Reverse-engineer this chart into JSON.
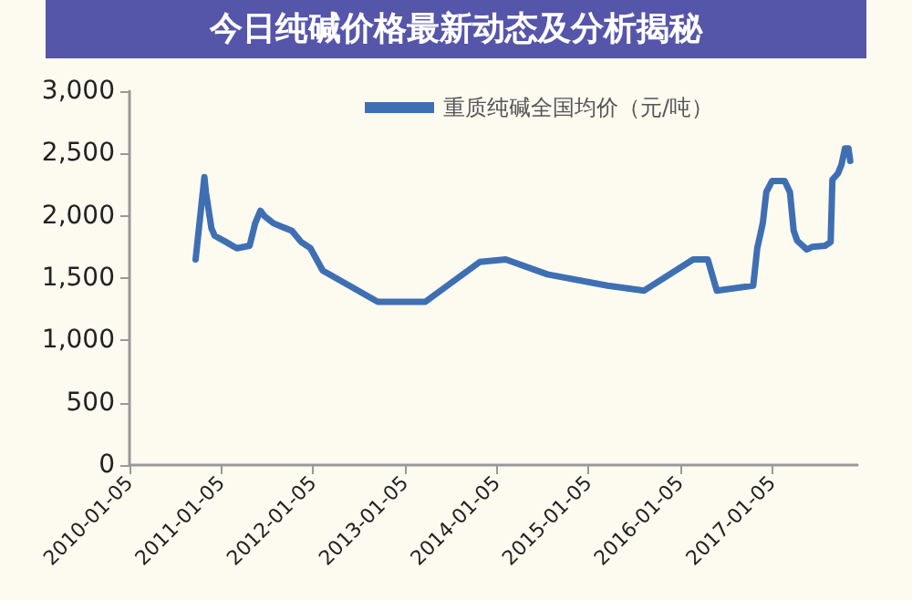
{
  "chart_data": {
    "type": "line",
    "title": "今日纯碱价格最新动态及分析揭秘",
    "x": [
      "2010-09-25",
      "2010-10-30",
      "2010-11-05",
      "2010-11-27",
      "2010-12-10",
      "2011-01-24",
      "2011-03-08",
      "2011-04-28",
      "2011-05-20",
      "2011-06-10",
      "2011-06-25",
      "2011-08-01",
      "2011-09-06",
      "2011-10-13",
      "2011-11-19",
      "2011-12-26",
      "2012-02-13",
      "2012-09-19",
      "2013-03-27",
      "2013-10-30",
      "2014-02-10",
      "2014-07-26",
      "2015-03-22",
      "2015-08-15",
      "2016-02-26",
      "2016-04-24",
      "2016-05-30",
      "2016-10-22",
      "2016-11-07",
      "2016-11-29",
      "2016-12-13",
      "2017-01-05",
      "2017-02-24",
      "2017-03-17",
      "2017-04-01",
      "2017-04-15",
      "2017-05-23",
      "2017-06-13",
      "2017-08-05",
      "2017-08-26",
      "2017-09-02",
      "2017-09-24",
      "2017-10-08",
      "2017-10-22",
      "2017-11-05",
      "2017-11-12"
    ],
    "series": [
      {
        "name": "重质纯碱全国均价（元/吨）",
        "color": "#3f6fb3",
        "values": [
          1650,
          2310,
          2190,
          1900,
          1840,
          1790,
          1740,
          1760,
          1940,
          2040,
          2000,
          1940,
          1910,
          1880,
          1790,
          1740,
          1560,
          1310,
          1310,
          1630,
          1650,
          1530,
          1440,
          1400,
          1650,
          1650,
          1400,
          1440,
          1740,
          1940,
          2190,
          2280,
          2280,
          2190,
          1880,
          1800,
          1730,
          1750,
          1760,
          1790,
          2290,
          2340,
          2410,
          2540,
          2540,
          2440
        ]
      }
    ],
    "xlim": [
      "2010-01-05",
      "2017-12-10"
    ],
    "xticks": [
      "2010-01-05",
      "2011-01-05",
      "2012-01-05",
      "2013-01-05",
      "2014-01-05",
      "2015-01-05",
      "2016-01-05",
      "2017-01-05"
    ],
    "ylim": [
      0,
      3000
    ],
    "yticks": [
      0,
      500,
      {
        "value": 1000,
        "label": "1,000"
      },
      {
        "value": 1500,
        "label": "1,500"
      },
      {
        "value": 2000,
        "label": "2,000"
      },
      {
        "value": 2500,
        "label": "2,500"
      },
      {
        "value": 3000,
        "label": "3,000"
      }
    ],
    "grid": false,
    "legend": "top",
    "marker": "none",
    "line_style": "solid"
  }
}
